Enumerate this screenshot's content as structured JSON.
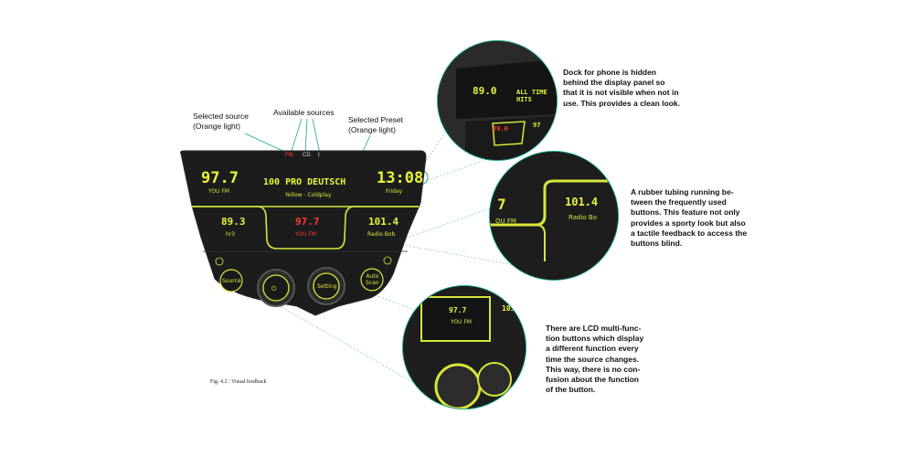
{
  "labels": {
    "selected_source": "Selected source\n(Orange light)",
    "available_sources": "Available sources",
    "selected_preset": "Selected Preset\n(Orange light)"
  },
  "sources": {
    "fm": "FM",
    "cd": "CD",
    "bt": "ᛒ"
  },
  "display": {
    "freq_left": "97.7",
    "station_left": "YOU FM",
    "station_name": "100 PRO DEUTSCH",
    "track": "Yellow - Coldplay",
    "time": "13:08",
    "day": "Friday",
    "preset1_freq": "89.3",
    "preset1_name": "hr3",
    "preset2_freq": "97.7",
    "preset2_name": "YOU FM",
    "preset3_freq": "101.4",
    "preset3_name": "Radio Bob"
  },
  "buttons": {
    "source": "Source",
    "setting": "Setting",
    "auto_scan": "Auto\nScan"
  },
  "notes": {
    "dock": "Dock for phone is hidden behind the display panel so that it is not visible when not in use. This provides a clean look.",
    "tubing": "A rubber tubing running be-tween the frequently used buttons. This feature not only provides a sporty look but also a tactile feedback to access the buttons blind.",
    "lcd": "There are LCD multi-func-tion buttons which display a different function every time the source changes. This way, there is no con-fusion about the function of the button."
  },
  "zoom1": {
    "freq": "89.0",
    "station": "ALL TIME HITS",
    "preset_red": "89.0",
    "preset": "97"
  },
  "zoom2": {
    "freq": "7",
    "station": "OU FM",
    "preset": "101.4",
    "preset_name": "Radio Bo"
  },
  "zoom3": {
    "freq": "97.7",
    "station": "YOU FM",
    "preset": "101"
  },
  "caption": "Fig. 4.2 : Visual feedback",
  "colors": {
    "lcd": "#e8f53a",
    "accent_red": "#ff3b30",
    "teal": "#1aa88c",
    "panel": "#1c1c1c"
  }
}
